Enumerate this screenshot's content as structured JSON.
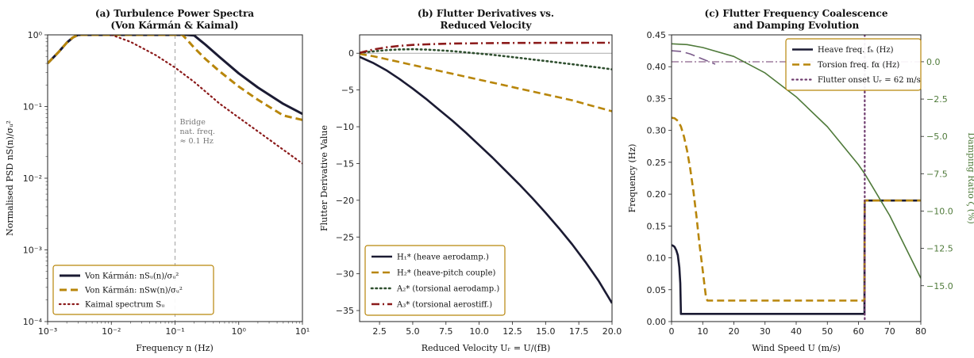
{
  "colors": {
    "navy": "#1b1b33",
    "gold": "#b8860b",
    "darkgreen": "#2f4f2f",
    "crimson": "#8b1a1a",
    "olive": "#4f7a3a",
    "purple": "#6e3b6e",
    "legend_border": "#b8860b"
  },
  "chart_data": [
    {
      "type": "line",
      "title": "(a) Turbulence Power Spectra",
      "subtitle": "(Von Kármán & Kaimal)",
      "xlabel": "Frequency n (Hz)",
      "ylabel": "Normalised PSD nS(n)/σᵤ²",
      "xscale": "log",
      "yscale": "log",
      "xlim": [
        0.001,
        10
      ],
      "ylim": [
        0.0001,
        1
      ],
      "x_ticks": [
        {
          "v": 0.001,
          "label": "10⁻³"
        },
        {
          "v": 0.01,
          "label": "10⁻²"
        },
        {
          "v": 0.1,
          "label": "10⁻¹"
        },
        {
          "v": 1,
          "label": "10⁰"
        },
        {
          "v": 10,
          "label": "10¹"
        }
      ],
      "y_ticks": [
        {
          "v": 0.0001,
          "label": "10⁻⁴"
        },
        {
          "v": 0.001,
          "label": "10⁻³"
        },
        {
          "v": 0.01,
          "label": "10⁻²"
        },
        {
          "v": 0.1,
          "label": "10⁻¹"
        },
        {
          "v": 1,
          "label": "10⁰"
        }
      ],
      "annotation": [
        "Bridge",
        "nat. freq.",
        "≈ 0.1 Hz"
      ],
      "vline": 0.1,
      "legend_position": "lower-left",
      "series": [
        {
          "name": "Von Kármán: nSᵤ(n)/σᵤ²",
          "color": "#1b1b33",
          "dash": "solid",
          "width": 3,
          "x": [
            0.001,
            0.0015,
            0.002,
            0.0025,
            0.003,
            0.01,
            0.1,
            0.15,
            0.2,
            0.3,
            0.5,
            1,
            2,
            5,
            10
          ],
          "y": [
            0.4,
            0.58,
            0.78,
            0.92,
            1.0,
            1.0,
            1.0,
            1.0,
            0.98,
            0.73,
            0.49,
            0.29,
            0.184,
            0.109,
            0.079
          ]
        },
        {
          "name": "Von Kármán: nSw(n)/σᵤ²",
          "color": "#b8860b",
          "dash": "dash",
          "width": 3,
          "x": [
            0.001,
            0.0015,
            0.002,
            0.0025,
            0.003,
            0.01,
            0.1,
            0.13,
            0.15,
            0.2,
            0.3,
            0.5,
            1,
            2,
            5,
            10
          ],
          "y": [
            0.4,
            0.58,
            0.78,
            0.92,
            1.0,
            1.0,
            1.0,
            1.0,
            0.88,
            0.66,
            0.46,
            0.31,
            0.19,
            0.124,
            0.075,
            0.065
          ]
        },
        {
          "name": "Kaimal spectrum Sᵤ",
          "color": "#8b1a1a",
          "dash": "dot",
          "width": 2.2,
          "x": [
            0.01,
            0.02,
            0.05,
            0.1,
            0.2,
            0.5,
            1,
            2,
            5,
            10
          ],
          "y": [
            1.0,
            0.8,
            0.52,
            0.35,
            0.22,
            0.11,
            0.07,
            0.045,
            0.025,
            0.016
          ]
        }
      ]
    },
    {
      "type": "line",
      "title": "(b) Flutter Derivatives vs.",
      "subtitle": "Reduced Velocity",
      "xlabel": "Reduced Velocity Uᵣ = U/(fB)",
      "ylabel": "Flutter Derivative Value",
      "xlim": [
        1,
        20
      ],
      "ylim": [
        -36.5,
        2.5
      ],
      "x_ticks": [
        {
          "v": 2.5,
          "label": "2.5"
        },
        {
          "v": 5,
          "label": "5.0"
        },
        {
          "v": 7.5,
          "label": "7.5"
        },
        {
          "v": 10,
          "label": "10.0"
        },
        {
          "v": 12.5,
          "label": "12.5"
        },
        {
          "v": 15,
          "label": "15.0"
        },
        {
          "v": 17.5,
          "label": "17.5"
        },
        {
          "v": 20,
          "label": "20.0"
        }
      ],
      "y_ticks": [
        {
          "v": 0,
          "label": "0"
        },
        {
          "v": -5,
          "label": "−5"
        },
        {
          "v": -10,
          "label": "−10"
        },
        {
          "v": -15,
          "label": "−15"
        },
        {
          "v": -20,
          "label": "−20"
        },
        {
          "v": -25,
          "label": "−25"
        },
        {
          "v": -30,
          "label": "−30"
        },
        {
          "v": -35,
          "label": "−35"
        }
      ],
      "hline": 0,
      "legend_position": "lower-left",
      "series": [
        {
          "name": "H₁* (heave aerodamp.)",
          "color": "#1b1b33",
          "dash": "solid",
          "width": 2.6,
          "x": [
            1,
            2,
            3,
            4,
            5,
            6,
            7,
            8,
            9,
            10,
            11,
            12,
            13,
            14,
            15,
            16,
            17,
            18,
            19,
            20
          ],
          "y": [
            -0.5,
            -1.3,
            -2.3,
            -3.5,
            -4.8,
            -6.2,
            -7.7,
            -9.2,
            -10.8,
            -12.5,
            -14.2,
            -16.0,
            -17.8,
            -19.7,
            -21.7,
            -23.8,
            -26.0,
            -28.4,
            -31.0,
            -34.0
          ]
        },
        {
          "name": "H₂* (heave-pitch couple)",
          "color": "#b8860b",
          "dash": "dash",
          "width": 2.6,
          "x": [
            1,
            2,
            3,
            4,
            5,
            6,
            7,
            8,
            9,
            10,
            11,
            12,
            13,
            14,
            15,
            16,
            17,
            18,
            19,
            20
          ],
          "y": [
            -0.1,
            -0.4,
            -0.8,
            -1.2,
            -1.6,
            -2.0,
            -2.4,
            -2.8,
            -3.2,
            -3.6,
            -4.0,
            -4.4,
            -4.8,
            -5.2,
            -5.6,
            -6.0,
            -6.4,
            -6.9,
            -7.4,
            -7.9
          ]
        },
        {
          "name": "A₂* (torsional aerodamp.)",
          "color": "#2f4f2f",
          "dash": "dot",
          "width": 2.6,
          "x": [
            1,
            2,
            3,
            4,
            5,
            6,
            7,
            8,
            9,
            10,
            11,
            12,
            13,
            14,
            15,
            16,
            17,
            18,
            19,
            20
          ],
          "y": [
            0.05,
            0.25,
            0.42,
            0.52,
            0.55,
            0.5,
            0.4,
            0.28,
            0.12,
            -0.05,
            -0.22,
            -0.42,
            -0.62,
            -0.85,
            -1.05,
            -1.28,
            -1.5,
            -1.72,
            -1.95,
            -2.2
          ]
        },
        {
          "name": "A₃* (torsional aerostiff.)",
          "color": "#8b1a1a",
          "dash": "dashdot",
          "width": 2.6,
          "x": [
            1,
            2,
            3,
            4,
            5,
            6,
            7,
            8,
            9,
            10,
            11,
            12,
            13,
            14,
            15,
            16,
            17,
            18,
            19,
            20
          ],
          "y": [
            0.05,
            0.5,
            0.8,
            1.0,
            1.13,
            1.21,
            1.27,
            1.31,
            1.34,
            1.36,
            1.38,
            1.39,
            1.4,
            1.4,
            1.41,
            1.41,
            1.41,
            1.42,
            1.42,
            1.42
          ]
        }
      ]
    },
    {
      "type": "line",
      "title": "(c) Flutter Frequency Coalescence",
      "subtitle": "and Damping Evolution",
      "xlabel": "Wind Speed U (m/s)",
      "ylabel": "Frequency (Hz)",
      "y2label": "Damping Ratio ζ (%)",
      "xlim": [
        0,
        80
      ],
      "ylim": [
        0,
        0.45
      ],
      "y2lim": [
        -17.4,
        1.8
      ],
      "x_ticks": [
        {
          "v": 0,
          "label": "0"
        },
        {
          "v": 10,
          "label": "10"
        },
        {
          "v": 20,
          "label": "20"
        },
        {
          "v": 30,
          "label": "30"
        },
        {
          "v": 40,
          "label": "40"
        },
        {
          "v": 50,
          "label": "50"
        },
        {
          "v": 60,
          "label": "60"
        },
        {
          "v": 70,
          "label": "70"
        },
        {
          "v": 80,
          "label": "80"
        }
      ],
      "y_ticks": [
        {
          "v": 0,
          "label": "0.00"
        },
        {
          "v": 0.05,
          "label": "0.05"
        },
        {
          "v": 0.1,
          "label": "0.10"
        },
        {
          "v": 0.15,
          "label": "0.15"
        },
        {
          "v": 0.2,
          "label": "0.20"
        },
        {
          "v": 0.25,
          "label": "0.25"
        },
        {
          "v": 0.3,
          "label": "0.30"
        },
        {
          "v": 0.35,
          "label": "0.35"
        },
        {
          "v": 0.4,
          "label": "0.40"
        },
        {
          "v": 0.45,
          "label": "0.45"
        }
      ],
      "y2_ticks": [
        {
          "v": 0,
          "label": "0.0"
        },
        {
          "v": -2.5,
          "label": "−2.5"
        },
        {
          "v": -5,
          "label": "−5.0"
        },
        {
          "v": -7.5,
          "label": "−7.5"
        },
        {
          "v": -10,
          "label": "−10.0"
        },
        {
          "v": -12.5,
          "label": "−12.5"
        },
        {
          "v": -15,
          "label": "−15.0"
        }
      ],
      "legend_position": "top-right",
      "flutter_onset": 62,
      "zero_damping": 0,
      "series": [
        {
          "name": "Heave freq. fₕ (Hz)",
          "color": "#1b1b33",
          "dash": "solid",
          "width": 2.6,
          "axis": "left",
          "x": [
            0,
            0.5,
            1,
            1.5,
            2,
            2.5,
            2.8,
            3,
            10,
            20,
            40,
            61.9,
            62,
            70,
            80
          ],
          "y": [
            0.12,
            0.119,
            0.117,
            0.112,
            0.104,
            0.085,
            0.06,
            0.012,
            0.012,
            0.012,
            0.012,
            0.012,
            0.19,
            0.19,
            0.19
          ]
        },
        {
          "name": "Torsion freq. fα (Hz)",
          "color": "#b8860b",
          "dash": "dash",
          "width": 2.6,
          "axis": "left",
          "x": [
            0,
            1,
            2,
            3,
            4,
            5,
            6,
            7,
            8,
            9,
            10,
            10.5,
            11,
            11.5,
            20,
            40,
            61.9,
            62,
            70,
            80
          ],
          "y": [
            0.32,
            0.319,
            0.315,
            0.306,
            0.29,
            0.268,
            0.24,
            0.205,
            0.165,
            0.12,
            0.08,
            0.06,
            0.04,
            0.033,
            0.033,
            0.033,
            0.033,
            0.19,
            0.19,
            0.19
          ]
        },
        {
          "name": "Torsion freq. (early)",
          "legend": false,
          "color": "#7a5a8a",
          "dash": "longdash",
          "width": 1.6,
          "axis": "left",
          "x": [
            0,
            3,
            6,
            9,
            12,
            14
          ],
          "y": [
            0.425,
            0.424,
            0.42,
            0.414,
            0.408,
            0.404
          ]
        },
        {
          "name": "Damping ζ",
          "legend": false,
          "color": "#4f7a3a",
          "dash": "solid",
          "width": 1.6,
          "axis": "right",
          "x": [
            0,
            5,
            10,
            20,
            30,
            40,
            50,
            60,
            62,
            70,
            80
          ],
          "y": [
            1.2,
            1.15,
            0.95,
            0.35,
            -0.75,
            -2.35,
            -4.35,
            -6.9,
            -7.5,
            -10.3,
            -14.5
          ]
        },
        {
          "name": "Flutter onset Uᵣ = 62 m/s",
          "color": "#6e3b6e",
          "dash": "dot",
          "width": 2.2,
          "axis": "vline",
          "x": [
            62
          ]
        }
      ]
    }
  ]
}
